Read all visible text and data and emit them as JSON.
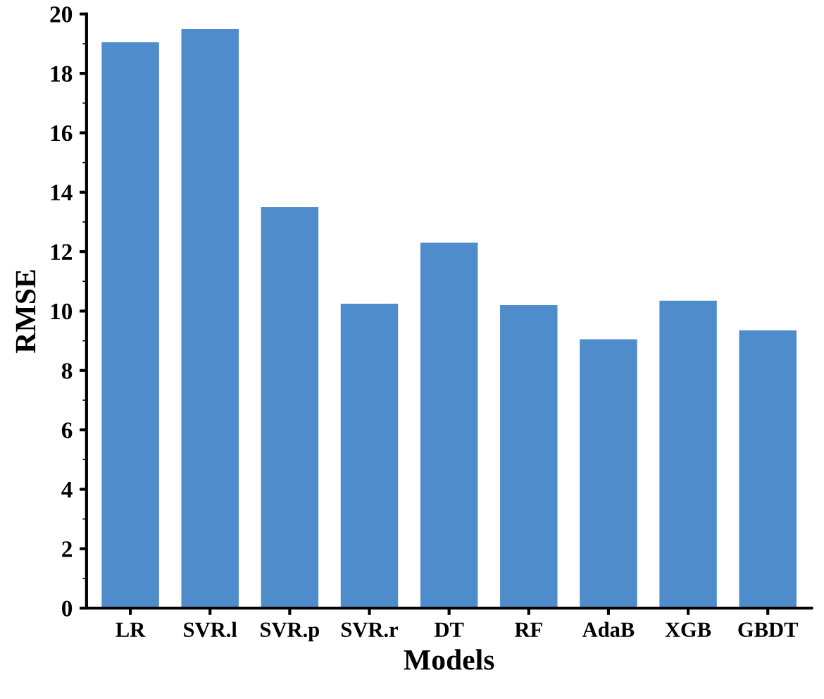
{
  "chart_data": {
    "type": "bar",
    "xlabel": "Models",
    "ylabel": "RMSE",
    "categories": [
      "LR",
      "SVR.l",
      "SVR.p",
      "SVR.r",
      "DT",
      "RF",
      "AdaB",
      "XGB",
      "GBDT"
    ],
    "values": [
      19.05,
      19.5,
      13.5,
      10.25,
      12.3,
      10.2,
      9.05,
      10.35,
      9.35
    ],
    "color": "#4f8ccc",
    "ylim": [
      0,
      20
    ],
    "yticks": [
      0,
      2,
      4,
      6,
      8,
      10,
      12,
      14,
      16,
      18,
      20
    ],
    "grid": false
  }
}
